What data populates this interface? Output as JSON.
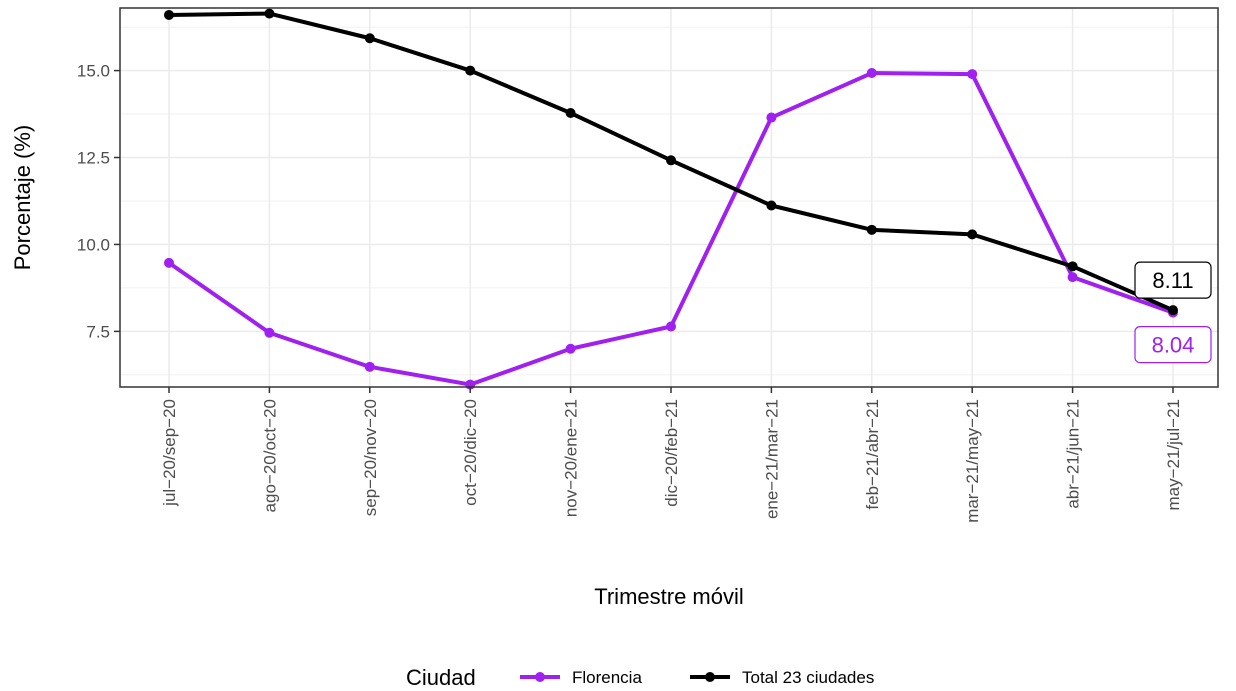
{
  "chart_data": {
    "type": "line",
    "xlabel": "Trimestre móvil",
    "ylabel": "Porcentaje (%)",
    "ylim": [
      5.9,
      16.8
    ],
    "yticks": [
      7.5,
      10.0,
      12.5,
      15.0
    ],
    "ytick_labels": [
      "7.5",
      "10.0",
      "12.5",
      "15.0"
    ],
    "grid": true,
    "legend": {
      "title": "Ciudad",
      "position": "bottom"
    },
    "categories": [
      "jul−20/sep−20",
      "ago−20/oct−20",
      "sep−20/nov−20",
      "oct−20/dic−20",
      "nov−20/ene−21",
      "dic−20/feb−21",
      "ene−21/mar−21",
      "feb−21/abr−21",
      "mar−21/may−21",
      "abr−21/jun−21",
      "may−21/jul−21"
    ],
    "series": [
      {
        "name": "Florencia",
        "color": "#a020f0",
        "values": [
          9.47,
          7.46,
          6.48,
          5.97,
          7.0,
          7.64,
          13.65,
          14.93,
          14.9,
          9.06,
          8.04
        ],
        "end_label": "8.04"
      },
      {
        "name": "Total 23 ciudades",
        "color": "#000000",
        "values": [
          16.6,
          16.64,
          15.93,
          15.0,
          13.78,
          12.42,
          11.12,
          10.42,
          10.29,
          9.37,
          8.11
        ],
        "end_label": "8.11"
      }
    ]
  }
}
